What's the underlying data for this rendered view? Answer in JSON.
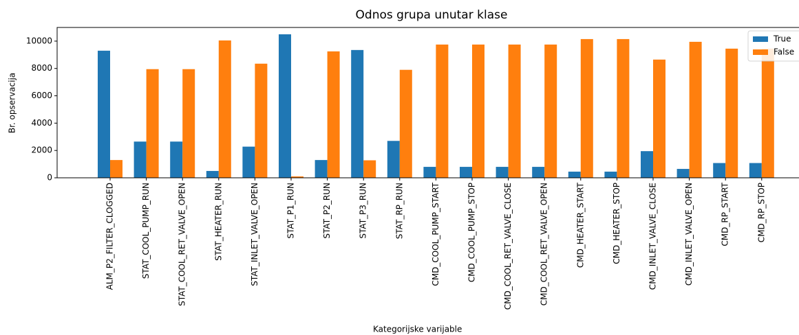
{
  "chart_data": {
    "type": "bar",
    "title": "Odnos grupa unutar klase",
    "x_label": "Kategorijske varijable",
    "y_label": "Br. opservacija",
    "categories": [
      "ALM_P2_FILTER_CLOGGED",
      "STAT_COOL_PUMP_RUN",
      "STAT_COOL_RET_VALVE_OPEN",
      "STAT_HEATER_RUN",
      "STAT_INLET_VALVE_OPEN",
      "STAT_P1_RUN",
      "STAT_P2_RUN",
      "STAT_P3_RUN",
      "STAT_RP_RUN",
      "CMD_COOL_PUMP_START",
      "CMD_COOL_PUMP_STOP",
      "CMD_COOL_RET_VALVE_CLOSE",
      "CMD_COOL_RET_VALVE_OPEN",
      "CMD_HEATER_START",
      "CMD_HEATER_STOP",
      "CMD_INLET_VALVE_CLOSE",
      "CMD_INLET_VALVE_OPEN",
      "CMD_RP_START",
      "CMD_RP_STOP"
    ],
    "series": [
      {
        "name": "True",
        "color": "#1f77b4",
        "values": [
          9300,
          2650,
          2650,
          500,
          2280,
          10500,
          1300,
          9350,
          2700,
          800,
          800,
          800,
          800,
          450,
          450,
          1950,
          650,
          1080,
          1080
        ]
      },
      {
        "name": "False",
        "color": "#ff7f0e",
        "values": [
          1300,
          7950,
          7950,
          10050,
          8350,
          100,
          9250,
          1280,
          7900,
          9750,
          9750,
          9750,
          9750,
          10150,
          10150,
          8650,
          9950,
          9450,
          9450
        ]
      }
    ],
    "ylim": [
      0,
      11000
    ],
    "yticks": [
      0,
      2000,
      4000,
      6000,
      8000,
      10000
    ],
    "legend": "upper right"
  }
}
